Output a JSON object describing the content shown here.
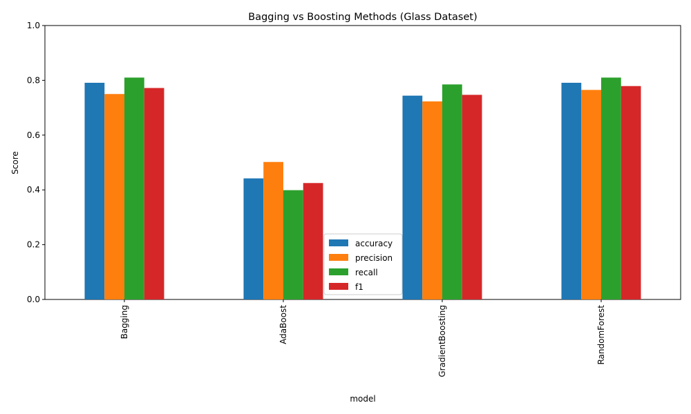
{
  "chart_data": {
    "type": "bar",
    "title": "Bagging vs Boosting Methods (Glass Dataset)",
    "xlabel": "model",
    "ylabel": "Score",
    "ylim": [
      0,
      1.0
    ],
    "yticks": [
      "0.0",
      "0.2",
      "0.4",
      "0.6",
      "0.8",
      "1.0"
    ],
    "categories": [
      "Bagging",
      "AdaBoost",
      "GradientBoosting",
      "RandomForest"
    ],
    "series": [
      {
        "name": "accuracy",
        "color": "#1f77b4",
        "values": [
          0.791,
          0.442,
          0.744,
          0.791
        ]
      },
      {
        "name": "precision",
        "color": "#ff7f0e",
        "values": [
          0.75,
          0.502,
          0.723,
          0.765
        ]
      },
      {
        "name": "recall",
        "color": "#2ca02c",
        "values": [
          0.81,
          0.399,
          0.785,
          0.81
        ]
      },
      {
        "name": "f1",
        "color": "#d62728",
        "values": [
          0.772,
          0.425,
          0.747,
          0.779
        ]
      }
    ],
    "grid": false,
    "legend_position": "lower center"
  }
}
